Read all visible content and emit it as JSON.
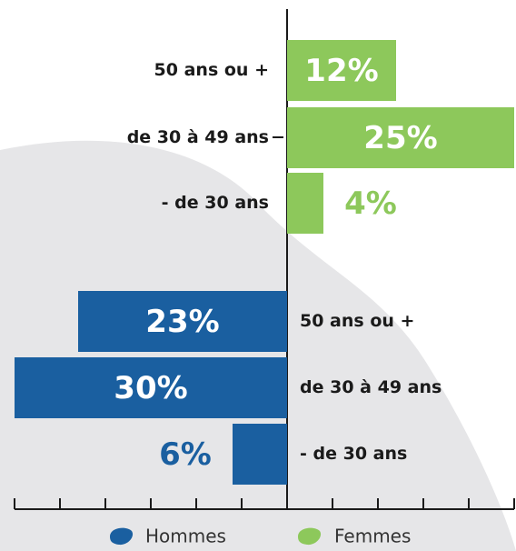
{
  "chart_data": {
    "type": "butterfly-bar",
    "categories": [
      "50 ans ou +",
      "de 30 à 49 ans",
      "- de 30 ans"
    ],
    "series": [
      {
        "name": "Femmes",
        "color": "#8dc85b",
        "values": [
          12,
          25,
          4
        ],
        "value_labels": [
          "12%",
          "25%",
          "4%"
        ]
      },
      {
        "name": "Hommes",
        "color": "#1a5fa0",
        "values": [
          23,
          30,
          6
        ],
        "value_labels": [
          "23%",
          "30%",
          "6%"
        ]
      }
    ],
    "xlim": [
      -30,
      25
    ],
    "xticks": [
      -30,
      -25,
      -20,
      -15,
      -10,
      -5,
      0,
      5,
      10,
      15,
      20,
      25
    ]
  }
}
